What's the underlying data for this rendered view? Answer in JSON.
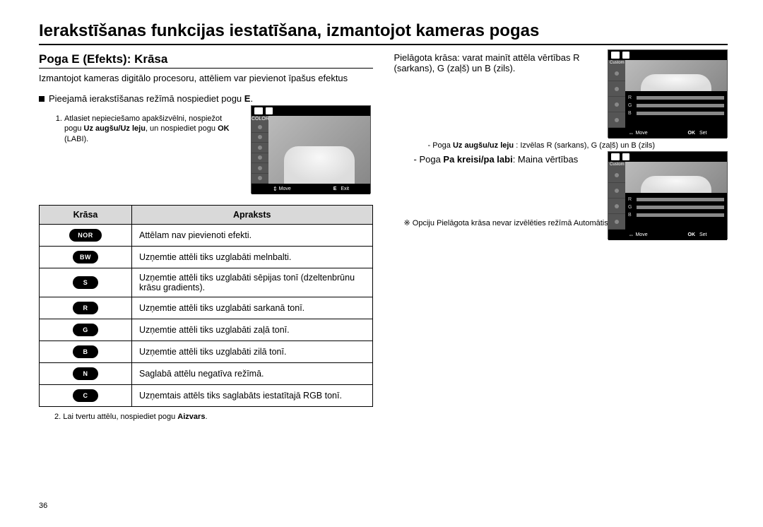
{
  "title": "Ierakstīšanas funkcijas iestatīšana, izmantojot kameras pogas",
  "section": "Poga E (Efekts): Krāsa",
  "intro": "Izmantojot kameras digitālo procesoru, attēliem var pievienot īpašus efektus",
  "bullet1_pre": "Pieejamā ierakstīšanas režīmā nospiediet pogu ",
  "bullet1_b": "E",
  "bullet1_post": ".",
  "instr1_a": "Atlasiet nepieciešamo apakšizvēlni, nospiežot pogu ",
  "instr1_b1": "Uz augšu/Uz leju",
  "instr1_c": ", un nospiediet pogu ",
  "instr1_b2": "OK",
  "instr1_d": " (LABI).",
  "instr2_a": "Lai tvertu attēlu, nospiediet pogu ",
  "instr2_b": "Aizvars",
  "instr2_c": ".",
  "table": {
    "h1": "Krāsa",
    "h2": "Apraksts",
    "rows": [
      {
        "icon": "NOR",
        "iconClass": "",
        "desc": "Attēlam nav pievienoti efekti."
      },
      {
        "icon": "BW",
        "iconClass": "small",
        "desc": "Uzņemtie attēli tiks uzglabāti melnbalti."
      },
      {
        "icon": "S",
        "iconClass": "small",
        "desc": "Uzņemtie attēli tiks uzglabāti sēpijas tonī (dzeltenbrūnu krāsu gradients)."
      },
      {
        "icon": "R",
        "iconClass": "small",
        "desc": "Uzņemtie attēli tiks uzglabāti sarkanā tonī."
      },
      {
        "icon": "G",
        "iconClass": "small",
        "desc": "Uzņemtie attēli tiks uzglabāti zaļā tonī."
      },
      {
        "icon": "B",
        "iconClass": "small",
        "desc": "Uzņemtie attēli tiks uzglabāti zilā tonī."
      },
      {
        "icon": "N",
        "iconClass": "small",
        "desc": "Saglabā attēlu negatīva režīmā."
      },
      {
        "icon": "C",
        "iconClass": "small",
        "desc": "Uzņemtais attēls tiks saglabāts iestatītajā RGB tonī."
      }
    ]
  },
  "col2": {
    "bullet_pre": "Pielāgota krāsa: varat mainīt attēla vērtības R (sarkans), G (zaļš) un B (zils).",
    "sub1_a": "- Poga ",
    "sub1_b": "Uz augšu/uz leju",
    "sub1_c": " : Izvēlas R (sarkans), G (zaļš) un B (zils)",
    "sub2_a": "- Poga ",
    "sub2_b": "Pa kreisi/pa labi",
    "sub2_c": ": Maina vērtības",
    "note": "※ Opciju Pielāgota krāsa nevar izvēlēties režīmā Automātiskais."
  },
  "lcd": {
    "color_label": "COLOR",
    "custom_label": "Custom Color",
    "move": "Move",
    "exit": "Exit",
    "set": "Set",
    "e": "E",
    "ok": "OK",
    "bars": [
      "R",
      "G",
      "B"
    ]
  },
  "pageNumber": "36"
}
